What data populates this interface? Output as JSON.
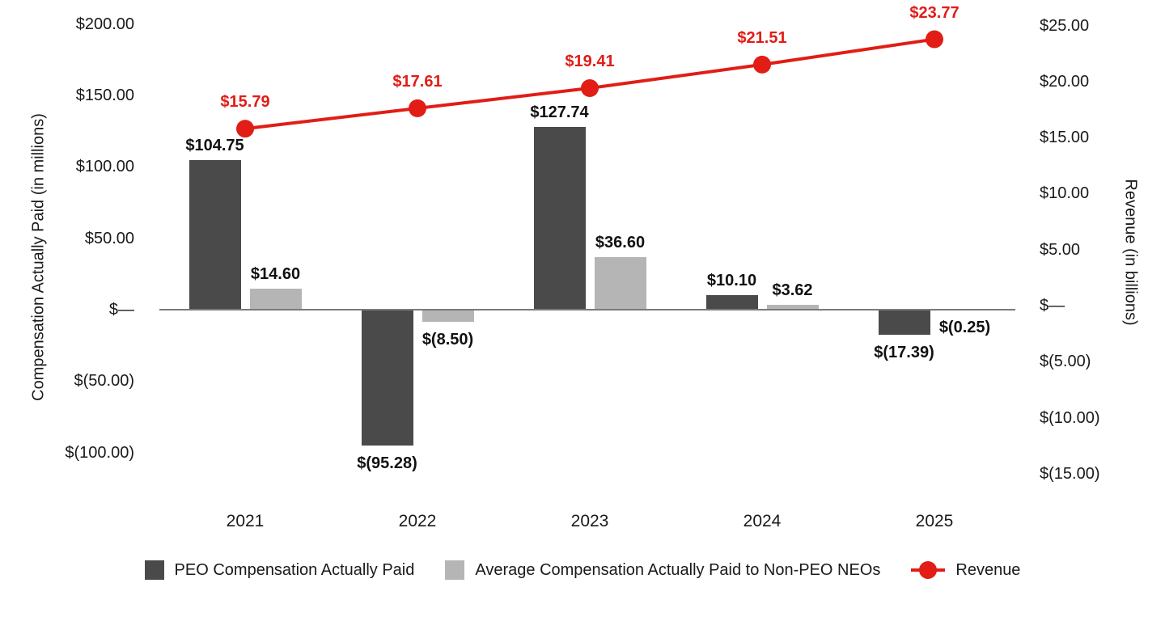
{
  "chart_data": {
    "type": "bar",
    "subtype": "combo-bar-line-dual-axis",
    "title": "",
    "categories": [
      "2021",
      "2022",
      "2023",
      "2024",
      "2025"
    ],
    "series": [
      {
        "name": "PEO Compensation Actually Paid",
        "type": "bar",
        "axis": "left",
        "values": [
          104.75,
          -95.28,
          127.74,
          10.1,
          -17.39
        ],
        "labels": [
          "$104.75",
          "$(95.28)",
          "$127.74",
          "$10.10",
          "$(17.39)"
        ],
        "color": "#4A4A4A"
      },
      {
        "name": "Average Compensation Actually Paid to Non-PEO NEOs",
        "type": "bar",
        "axis": "left",
        "values": [
          14.6,
          -8.5,
          36.6,
          3.62,
          -0.25
        ],
        "labels": [
          "$14.60",
          "$(8.50)",
          "$36.60",
          "$3.62",
          "$(0.25)"
        ],
        "color": "#B5B5B5"
      },
      {
        "name": "Revenue",
        "type": "line",
        "axis": "right",
        "values": [
          15.79,
          17.61,
          19.41,
          21.51,
          23.77
        ],
        "labels": [
          "$15.79",
          "$17.61",
          "$19.41",
          "$21.51",
          "$23.77"
        ],
        "color": "#E11D16"
      }
    ],
    "left_axis": {
      "title": "Compensation Actually Paid (in millions)",
      "tick_labels": [
        "$200.00",
        "$150.00",
        "$100.00",
        "$50.00",
        "$—",
        "$(50.00)",
        "$(100.00)"
      ],
      "tick_values": [
        200,
        150,
        100,
        50,
        0,
        -50,
        -100
      ],
      "range": [
        -100,
        200
      ]
    },
    "right_axis": {
      "title": "Revenue (in billions)",
      "tick_labels": [
        "$25.00",
        "$20.00",
        "$15.00",
        "$10.00",
        "$5.00",
        "$—",
        "$(5.00)",
        "$(10.00)",
        "$(15.00)"
      ],
      "tick_values": [
        25,
        20,
        15,
        10,
        5,
        0,
        -5,
        -10,
        -15
      ],
      "range": [
        -15,
        25
      ]
    },
    "legend_position": "bottom",
    "grid": false,
    "colors": {
      "peo_bar": "#4A4A4A",
      "non_peo_bar": "#B5B5B5",
      "revenue_line": "#E11D16",
      "axis_line": "#7A7A7A",
      "text": "#1A1A1A"
    }
  }
}
